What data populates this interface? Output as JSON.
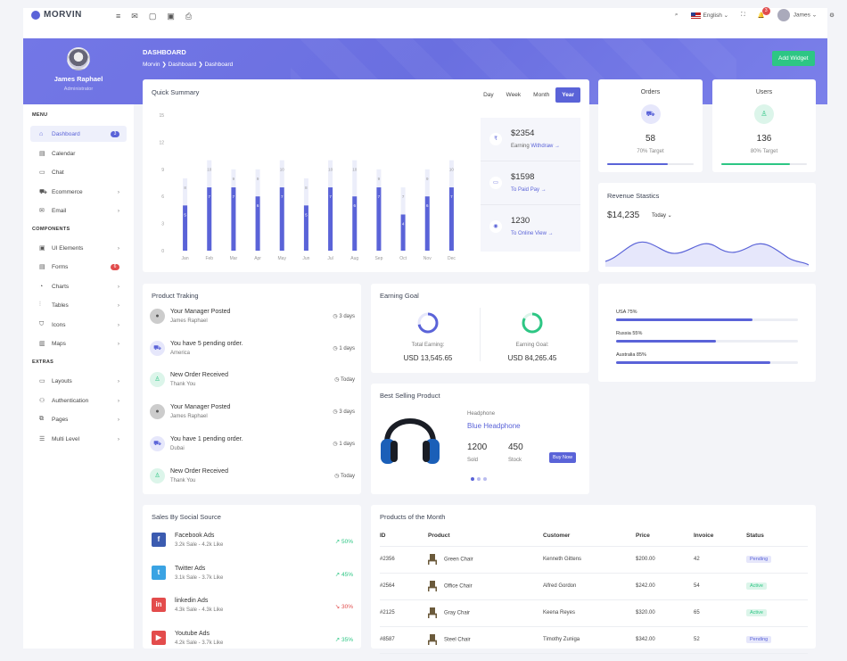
{
  "brand": "MORVIN",
  "topbar": {
    "language": "English",
    "user": "James",
    "notifications": "3"
  },
  "page": {
    "title": "DASHBOARD",
    "breadcrumb": [
      "Morvin",
      "Dashboard",
      "Dashboard"
    ],
    "add_widget": "Add Widget"
  },
  "profile": {
    "name": "James Raphael",
    "role": "Administrator"
  },
  "sidebar": {
    "sections": {
      "menu": "MENU",
      "components": "COMPONENTS",
      "extras": "EXTRAS"
    },
    "items": [
      {
        "label": "Dashboard",
        "icon": "home-icon",
        "badge": "3"
      },
      {
        "label": "Calendar",
        "icon": "calendar-icon"
      },
      {
        "label": "Chat",
        "icon": "chat-icon"
      },
      {
        "label": "Ecommerce",
        "icon": "cart-icon"
      },
      {
        "label": "Email",
        "icon": "mail-icon"
      },
      {
        "label": "UI Elements",
        "icon": "box-icon"
      },
      {
        "label": "Forms",
        "icon": "form-icon",
        "badge": "6"
      },
      {
        "label": "Charts",
        "icon": "chart-icon"
      },
      {
        "label": "Tables",
        "icon": "table-icon"
      },
      {
        "label": "Icons",
        "icon": "star-icon"
      },
      {
        "label": "Maps",
        "icon": "map-icon"
      },
      {
        "label": "Layouts",
        "icon": "layout-icon"
      },
      {
        "label": "Authentication",
        "icon": "users-icon"
      },
      {
        "label": "Pages",
        "icon": "pages-icon"
      },
      {
        "label": "Multi Level",
        "icon": "list-icon"
      }
    ]
  },
  "quick_summary": {
    "title": "Quick Summary",
    "tabs": [
      "Day",
      "Week",
      "Month",
      "Year"
    ],
    "stats": [
      {
        "value": "$2354",
        "label": "Earning",
        "link": "Withdraw",
        "icon": "rupee-icon",
        "glyph": "₹"
      },
      {
        "value": "$1598",
        "label": "To Paid",
        "link": "Pay",
        "icon": "card-icon",
        "glyph": "▭"
      },
      {
        "value": "1230",
        "label": "To Online",
        "link": "View",
        "icon": "eye-icon",
        "glyph": "◉"
      }
    ]
  },
  "chart_data": {
    "type": "bar",
    "categories": [
      "Jan",
      "Feb",
      "Mar",
      "Apr",
      "May",
      "Jun",
      "Jul",
      "Aug",
      "Sep",
      "Oct",
      "Nov",
      "Dec"
    ],
    "series": [
      {
        "values": [
          5,
          7,
          7,
          6,
          7,
          5,
          7,
          6,
          7,
          4,
          6,
          7
        ]
      },
      {
        "values": [
          8,
          10,
          9,
          9,
          10,
          8,
          10,
          10,
          9,
          7,
          9,
          10
        ]
      }
    ],
    "yticks": [
      "0",
      "3",
      "6",
      "9",
      "12",
      "15"
    ],
    "ylim": [
      0,
      15
    ],
    "colors": [
      "#5a63d8",
      "#eceefa"
    ]
  },
  "orders": {
    "title": "Orders",
    "value": "58",
    "target": "70% Target",
    "progress": 70
  },
  "users": {
    "title": "Users",
    "value": "136",
    "target": "80% Target",
    "progress": 80
  },
  "revenue": {
    "title": "Revenue Stastics",
    "value": "$14,235",
    "period": "Today"
  },
  "countries": [
    {
      "label": "USA 75%",
      "value": 75
    },
    {
      "label": "Russia 55%",
      "value": 55
    },
    {
      "label": "Australia 85%",
      "value": 85
    }
  ],
  "tracking": {
    "title": "Product Traking",
    "items": [
      {
        "title": "Your Manager Posted",
        "sub": "James Raphael",
        "time": "3 days",
        "kind": "avatar"
      },
      {
        "title": "You have 5 pending order.",
        "sub": "America",
        "time": "1 days",
        "kind": "cart"
      },
      {
        "title": "New Order Received",
        "sub": "Thank You",
        "time": "Today",
        "kind": "user"
      },
      {
        "title": "Your Manager Posted",
        "sub": "James Raphael",
        "time": "3 days",
        "kind": "avatar"
      },
      {
        "title": "You have 1 pending order.",
        "sub": "Dubai",
        "time": "1 days",
        "kind": "cart"
      },
      {
        "title": "New Order Received",
        "sub": "Thank You",
        "time": "Today",
        "kind": "user"
      }
    ]
  },
  "earning_goal": {
    "title": "Earning Goal",
    "total_label": "Total Earning:",
    "total_value": "USD 13,545.65",
    "goal_label": "Earning Goal:",
    "goal_value": "USD 84,265.45"
  },
  "best_selling": {
    "title": "Best Selling Product",
    "category": "Headphone",
    "name": "Blue Headphone",
    "sold": "1200",
    "sold_label": "Sold",
    "stock": "450",
    "stock_label": "Stock",
    "button": "Buy Now"
  },
  "social": {
    "title": "Sales By Social Source",
    "items": [
      {
        "name": "Facebook Ads",
        "sub": "3.2k Sale - 4.2k Like",
        "pct": "50%",
        "dir": "up",
        "glyph": "f",
        "color": "#3b5bb0"
      },
      {
        "name": "Twitter Ads",
        "sub": "3.1k Sale - 3.7k Like",
        "pct": "45%",
        "dir": "up",
        "glyph": "t",
        "color": "#3aa3e3"
      },
      {
        "name": "linkedin Ads",
        "sub": "4.3k Sale - 4.3k Like",
        "pct": "30%",
        "dir": "down",
        "glyph": "in",
        "color": "#e34c4c"
      },
      {
        "name": "Youtube Ads",
        "sub": "4.2k Sale - 3.7k Like",
        "pct": "35%",
        "dir": "up",
        "glyph": "▶",
        "color": "#e34c4c"
      }
    ]
  },
  "products": {
    "title": "Products of the Month",
    "headers": [
      "ID",
      "Product",
      "Customer",
      "Price",
      "Invoice",
      "Status"
    ],
    "rows": [
      {
        "id": "#2356",
        "product": "Green Chair",
        "customer": "Kenneth Gittens",
        "price": "$200.00",
        "invoice": "42",
        "status": "Pending"
      },
      {
        "id": "#2564",
        "product": "Office Chair",
        "customer": "Alfred Gordon",
        "price": "$242.00",
        "invoice": "54",
        "status": "Active"
      },
      {
        "id": "#2125",
        "product": "Gray Chair",
        "customer": "Keena Reyes",
        "price": "$320.00",
        "invoice": "65",
        "status": "Active"
      },
      {
        "id": "#8587",
        "product": "Steel Chair",
        "customer": "Timothy Zuniga",
        "price": "$342.00",
        "invoice": "52",
        "status": "Pending"
      }
    ]
  }
}
